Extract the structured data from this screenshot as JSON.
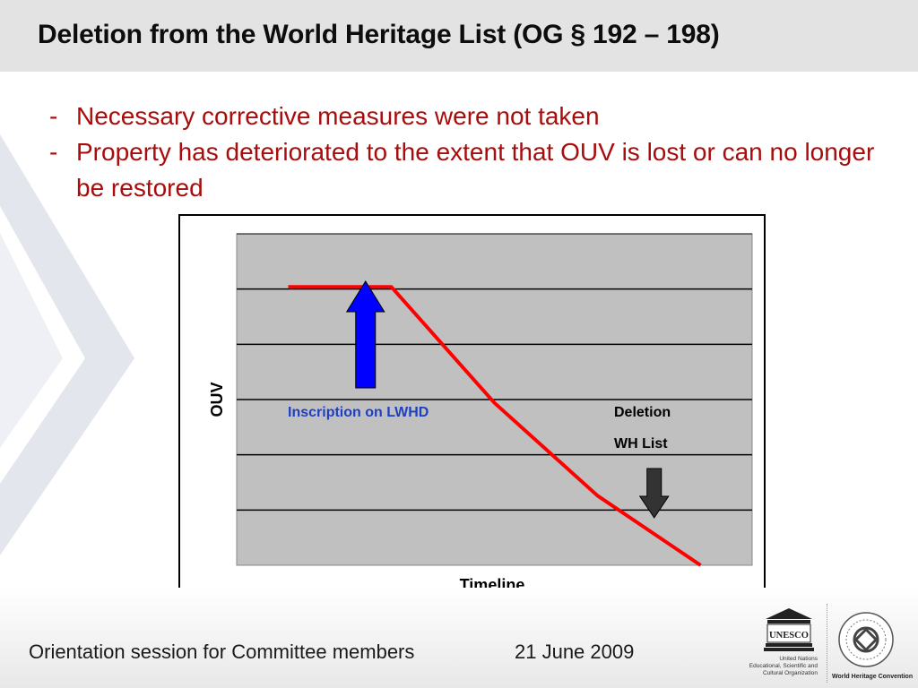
{
  "slide": {
    "title": "Deletion from the World Heritage List (OG § 192 – 198)",
    "bullets": [
      "Necessary corrective measures were not taken",
      "Property has deteriorated to the extent that OUV is lost or can no longer be restored"
    ],
    "bullet_marker": "-"
  },
  "diagram": {
    "y_axis_label": "OUV",
    "x_axis_label": "Timeline",
    "inscription_label": "Inscription on LWHD",
    "deletion_label_line1": "Deletion",
    "deletion_label_line2": "WH List",
    "colors": {
      "plot_background": "#c0c0c0",
      "ouv_line": "#ff0000",
      "inscription_arrow": "#0000ff",
      "inscription_label": "#1f3fbf",
      "deletion_arrow": "#333333"
    },
    "gridline_count": 6,
    "ouv_curve": [
      {
        "t": 0.1,
        "ouv": 0.84
      },
      {
        "t": 0.3,
        "ouv": 0.84
      },
      {
        "t": 0.5,
        "ouv": 0.49
      },
      {
        "t": 0.7,
        "ouv": 0.21
      },
      {
        "t": 0.9,
        "ouv": 0.0
      }
    ],
    "inscription_arrow_t": 0.25,
    "deletion_arrow_t": 0.81
  },
  "footer": {
    "event": "Orientation session for Committee members",
    "date": "21 June 2009"
  },
  "logos": {
    "unesco_mark": "UNESCO",
    "unesco_lines": [
      "United Nations",
      "Educational, Scientific and",
      "Cultural Organization"
    ],
    "whc_name": "World Heritage Convention"
  }
}
